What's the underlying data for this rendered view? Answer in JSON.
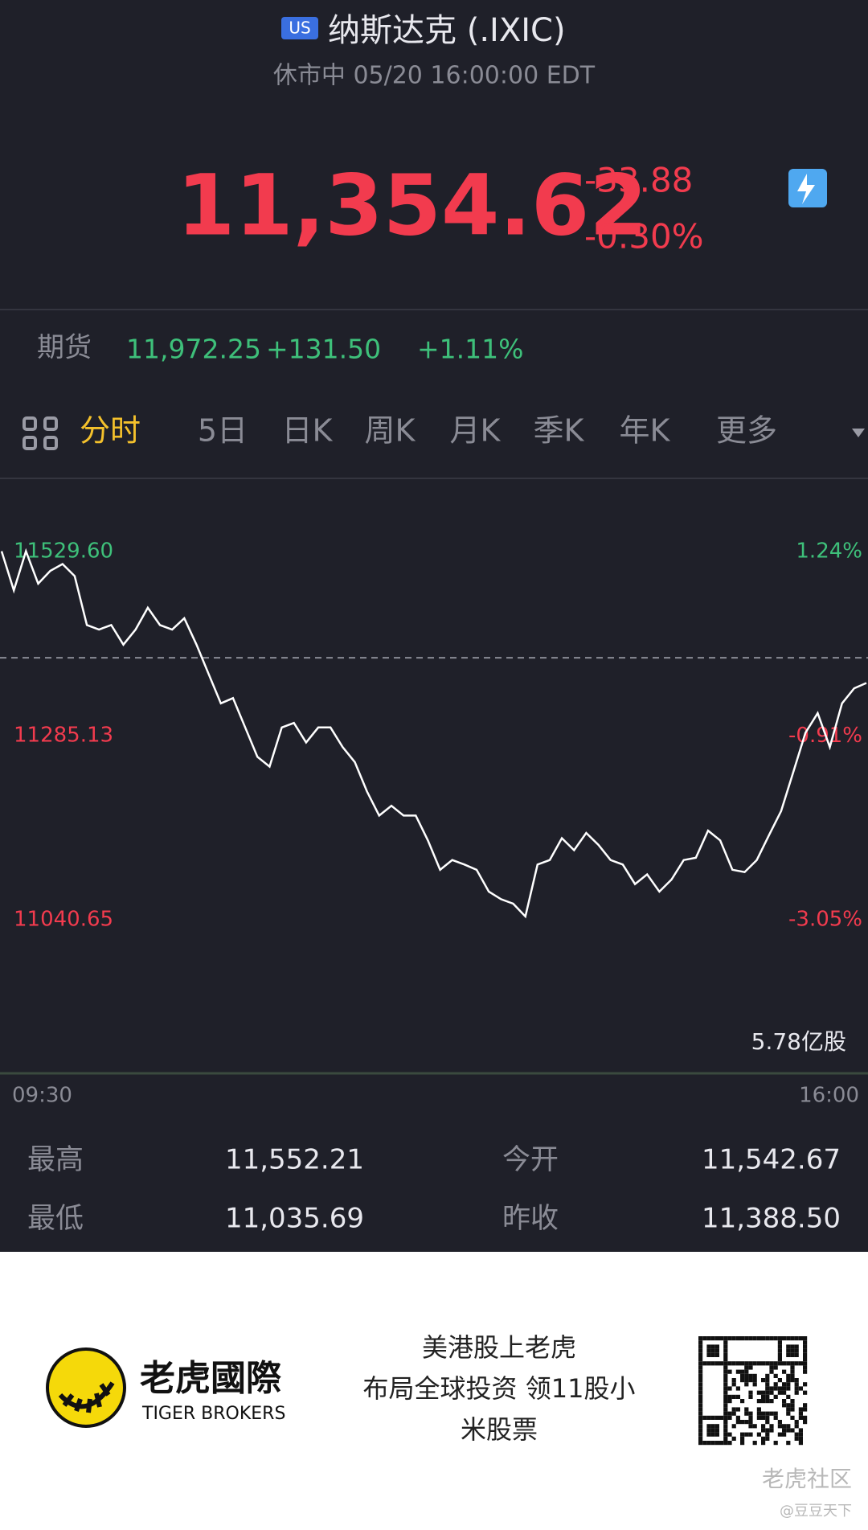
{
  "header": {
    "badge": "US",
    "title": "纳斯达克 (.IXIC)",
    "status": "休市中 05/20 16:00:00 EDT"
  },
  "quote": {
    "price": "11,354.62",
    "change": "-33.88",
    "change_pct": "-0.30%"
  },
  "futures": {
    "label": "期货",
    "price": "11,972.25",
    "change": "+131.50",
    "change_pct": "+1.11%"
  },
  "tabs": [
    "分时",
    "5日",
    "日K",
    "周K",
    "月K",
    "季K",
    "年K",
    "更多"
  ],
  "chart_data": {
    "type": "line",
    "color": "#ffffff",
    "values": [
      11530,
      11478,
      11530,
      11487,
      11504,
      11513,
      11497,
      11432,
      11426,
      11432,
      11406,
      11426,
      11455,
      11432,
      11426,
      11441,
      11406,
      11367,
      11328,
      11335,
      11296,
      11257,
      11244,
      11296,
      11302,
      11276,
      11296,
      11296,
      11270,
      11250,
      11211,
      11179,
      11192,
      11179,
      11179,
      11146,
      11107,
      11120,
      11114,
      11107,
      11078,
      11068,
      11062,
      11045,
      11114,
      11120,
      11149,
      11133,
      11156,
      11140,
      11120,
      11114,
      11088,
      11101,
      11078,
      11094,
      11120,
      11123,
      11159,
      11146,
      11107,
      11104,
      11120,
      11153,
      11185,
      11237,
      11289,
      11315,
      11270,
      11328,
      11348,
      11355
    ],
    "ylim": [
      11040.65,
      11529.6
    ],
    "yticks": [
      {
        "value": 11529.6,
        "label": "11529.60"
      },
      {
        "value": 11285.13,
        "label": "11285.13"
      },
      {
        "value": 11040.65,
        "label": "11040.65"
      }
    ],
    "y2lim": [
      -3.05,
      1.24
    ],
    "y2ticks": [
      {
        "value": 1.24,
        "label": "1.24%"
      },
      {
        "value": -0.91,
        "label": "-0.91%"
      },
      {
        "value": -3.05,
        "label": "-3.05%"
      }
    ],
    "baseline": 11388.5,
    "x_labels": [
      "09:30",
      "16:00"
    ],
    "volume_label": "5.78亿股"
  },
  "stats": [
    [
      "最高",
      "11,552.21",
      "今开",
      "11,542.67"
    ],
    [
      "最低",
      "11,035.69",
      "昨收",
      "11,388.50"
    ]
  ],
  "footer": {
    "brand": "老虎國際",
    "brand_en": "TIGER BROKERS",
    "slogan": [
      "美港股上老虎",
      "布局全球投资 领11股小",
      "米股票"
    ],
    "watermark": "老虎社区",
    "user": "@豆豆天下"
  }
}
